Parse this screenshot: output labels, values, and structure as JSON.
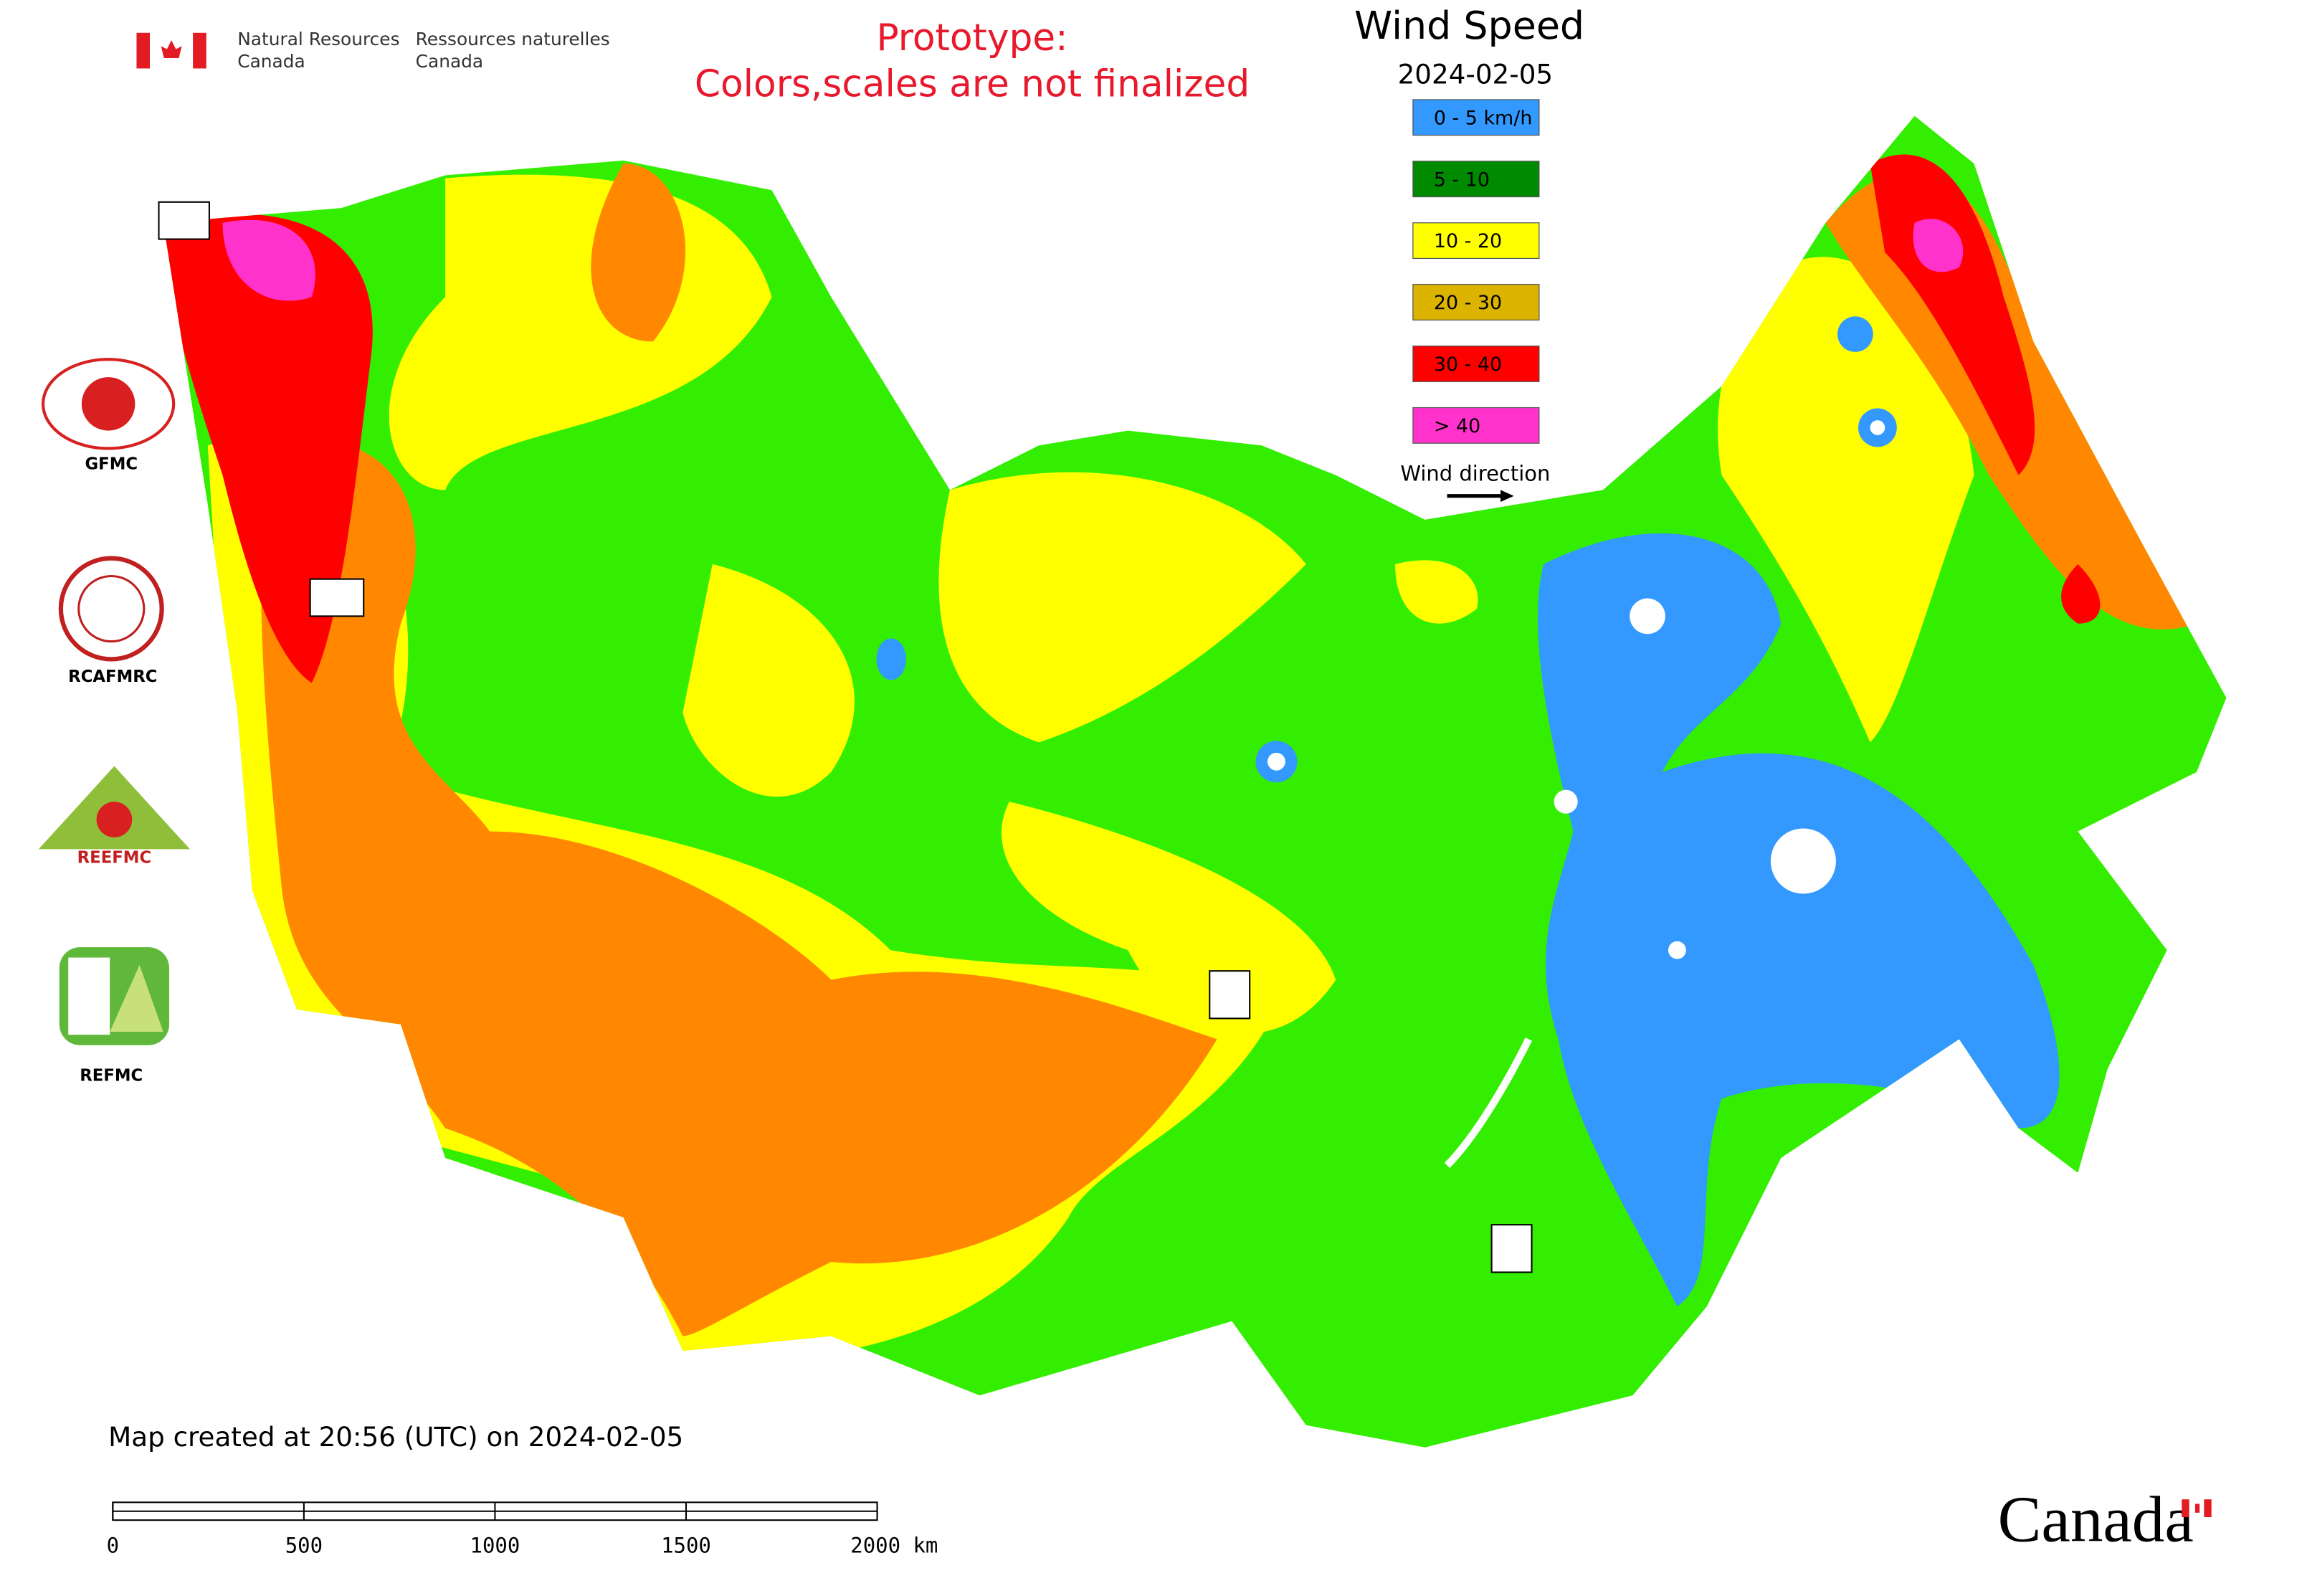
{
  "header": {
    "agency_en": "Natural Resources",
    "agency_en_2": "Canada",
    "agency_fr": "Ressources naturelles",
    "agency_fr_2": "Canada",
    "notice_1": "Prototype:",
    "notice_2": "Colors,scales are not finalized"
  },
  "map": {
    "title": "Wind Speed",
    "date": "2024-02-05",
    "legend": [
      {
        "label": "0 - 5 km/h",
        "color": "#3399ff"
      },
      {
        "label": "5 - 10",
        "color": "#008a00"
      },
      {
        "label": "10 - 20",
        "color": "#ffff00"
      },
      {
        "label": "20 - 30",
        "color": "#dcb400"
      },
      {
        "label": "30 - 40",
        "color": "#ff0000"
      },
      {
        "label": "> 40",
        "color": "#ff33cc"
      }
    ],
    "wind_direction": "Wind direction",
    "created": "Map created at 20:56 (UTC) on 2024-02-05",
    "scale_labels": [
      "0",
      "500",
      "1000",
      "1500",
      "2000 km"
    ]
  },
  "logos": [
    "GFMC",
    "RCAFMRC",
    "REEFMC",
    "REFMC"
  ],
  "wordmark": "Canada"
}
